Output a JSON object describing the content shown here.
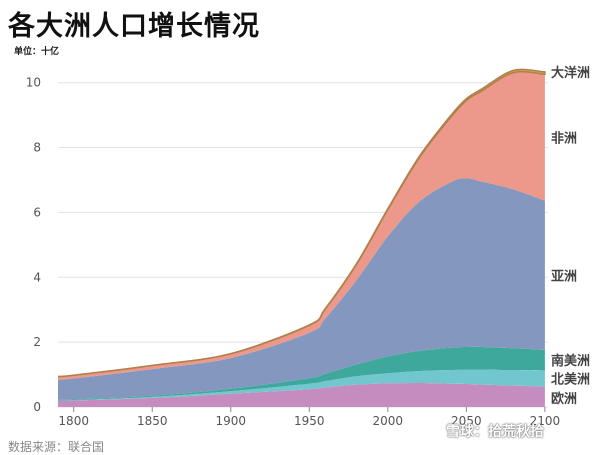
{
  "chart_data": {
    "type": "area",
    "stacked": true,
    "title": "各大洲人口增长情况",
    "unit_label": "单位：十亿",
    "xlabel": "",
    "ylabel": "",
    "xlim": [
      1790,
      2102
    ],
    "ylim": [
      0,
      10.7
    ],
    "x_ticks": [
      1800,
      1850,
      1900,
      1950,
      2000,
      2050,
      2100
    ],
    "y_ticks": [
      0,
      2,
      4,
      6,
      8,
      10
    ],
    "grid": "horizontal",
    "legend": "series labels at right end",
    "x": [
      1790,
      1800,
      1850,
      1900,
      1950,
      1960,
      1980,
      2000,
      2020,
      2040,
      2050,
      2060,
      2080,
      2100
    ],
    "series": [
      {
        "name": "欧洲",
        "color": "#c58cbf",
        "values": [
          0.19,
          0.2,
          0.28,
          0.41,
          0.55,
          0.6,
          0.69,
          0.73,
          0.74,
          0.72,
          0.71,
          0.69,
          0.66,
          0.63
        ]
      },
      {
        "name": "北美洲",
        "color": "#72c7cf",
        "values": [
          0.01,
          0.01,
          0.03,
          0.08,
          0.17,
          0.2,
          0.26,
          0.31,
          0.37,
          0.42,
          0.44,
          0.46,
          0.48,
          0.5
        ]
      },
      {
        "name": "南美洲",
        "color": "#3fa89c",
        "values": [
          0.02,
          0.02,
          0.04,
          0.07,
          0.17,
          0.22,
          0.36,
          0.52,
          0.62,
          0.69,
          0.7,
          0.7,
          0.67,
          0.63
        ]
      },
      {
        "name": "亚洲",
        "color": "#8397bf",
        "values": [
          0.62,
          0.65,
          0.82,
          0.95,
          1.4,
          1.7,
          2.6,
          3.7,
          4.6,
          5.1,
          5.2,
          5.1,
          4.9,
          4.6
        ]
      },
      {
        "name": "非洲",
        "color": "#ec998c",
        "values": [
          0.1,
          0.1,
          0.11,
          0.13,
          0.23,
          0.29,
          0.48,
          0.82,
          1.35,
          2.0,
          2.4,
          2.8,
          3.6,
          3.9
        ]
      },
      {
        "name": "大洋洲",
        "color": "#d4a05e",
        "values": [
          0.002,
          0.002,
          0.003,
          0.006,
          0.013,
          0.016,
          0.023,
          0.031,
          0.043,
          0.053,
          0.057,
          0.061,
          0.068,
          0.073
        ]
      }
    ],
    "source": "数据来源：联合国"
  },
  "watermark": "雪球：拾荒秋拾"
}
